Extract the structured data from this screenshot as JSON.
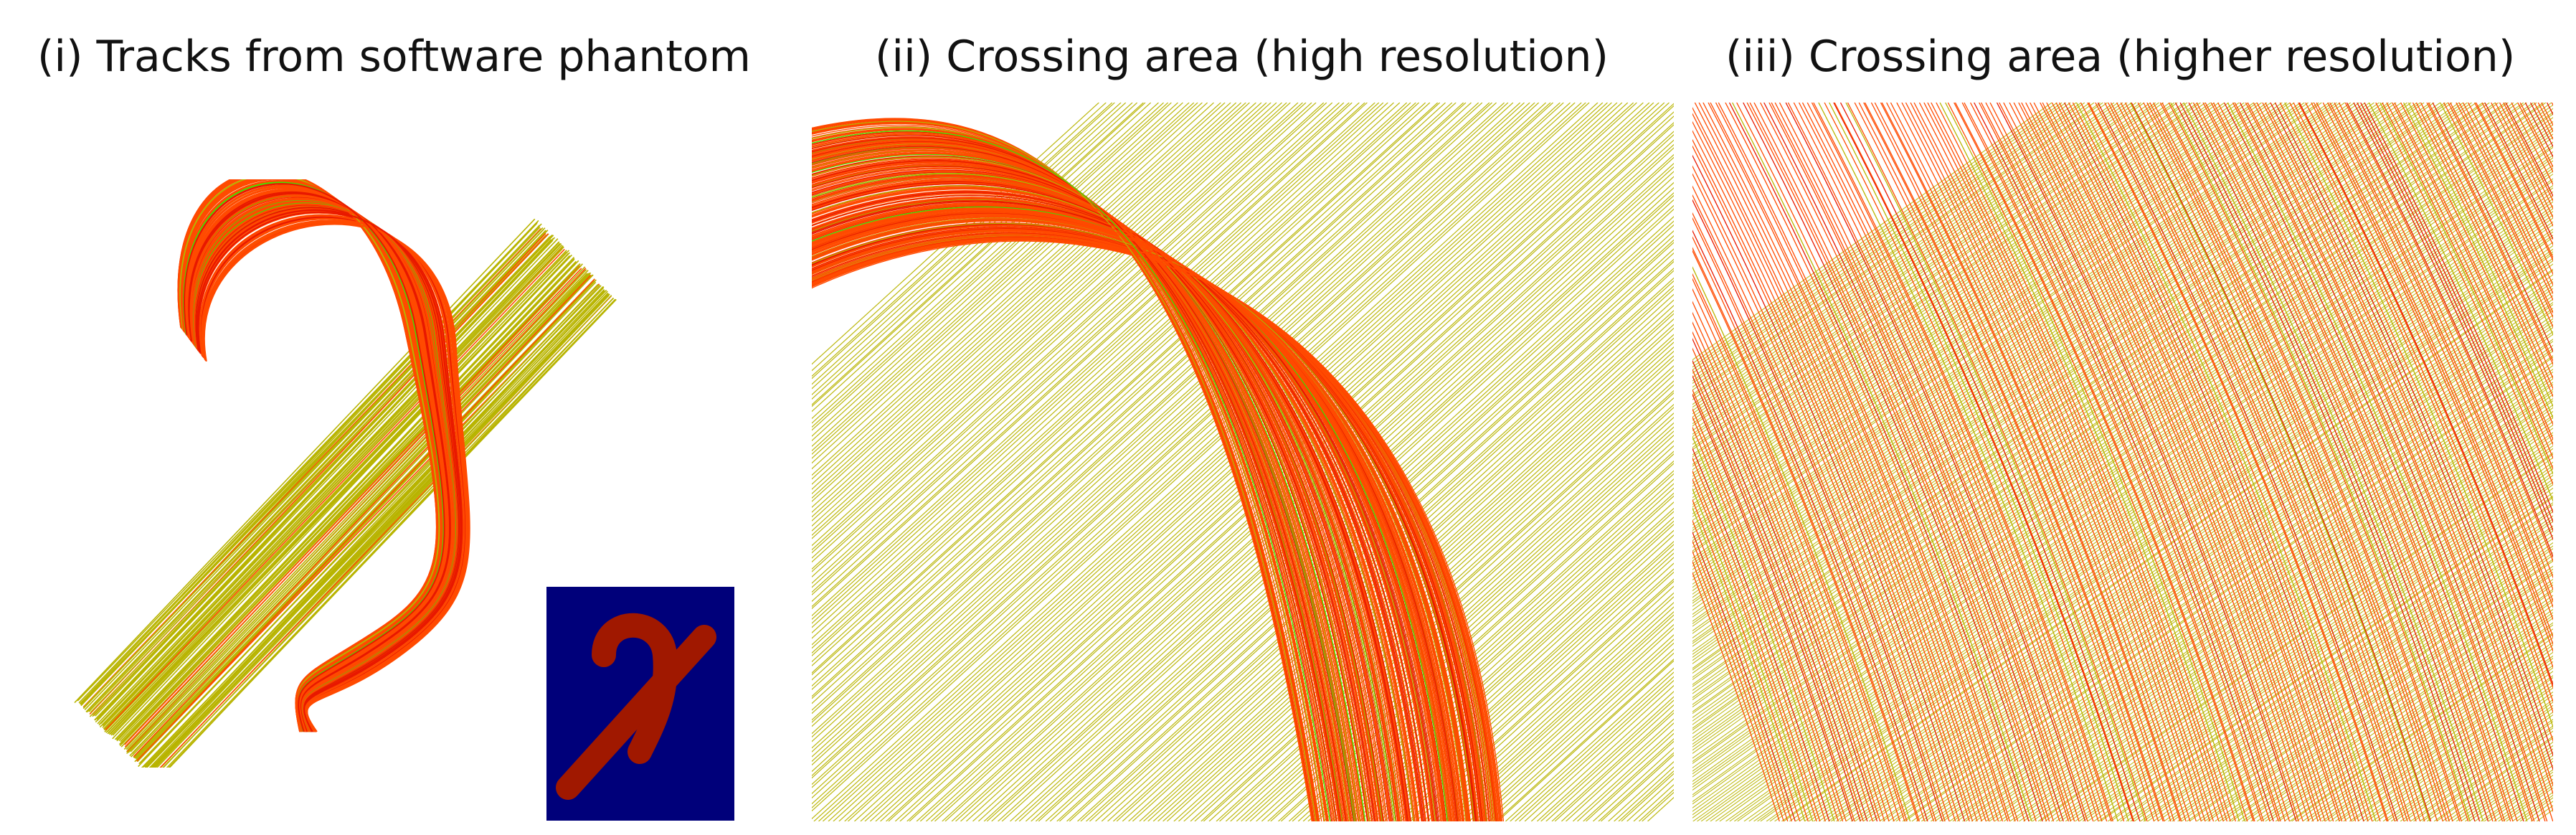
{
  "figure": {
    "panels": [
      {
        "id": "tracks-overview",
        "title": "(i) Tracks from software phantom"
      },
      {
        "id": "crossing-high",
        "title": "(ii) Crossing area (high resolution)"
      },
      {
        "id": "crossing-higher",
        "title": "(iii) Crossing area (higher resolution)"
      }
    ],
    "colors": {
      "straight_bundle": "#b8b400",
      "curved_bundle": "#ff4a00",
      "curved_bundle_deep": "#e81800",
      "green_tracks": "#44e000",
      "inset_background": "#00007a",
      "inset_shape": "#a01800"
    }
  }
}
